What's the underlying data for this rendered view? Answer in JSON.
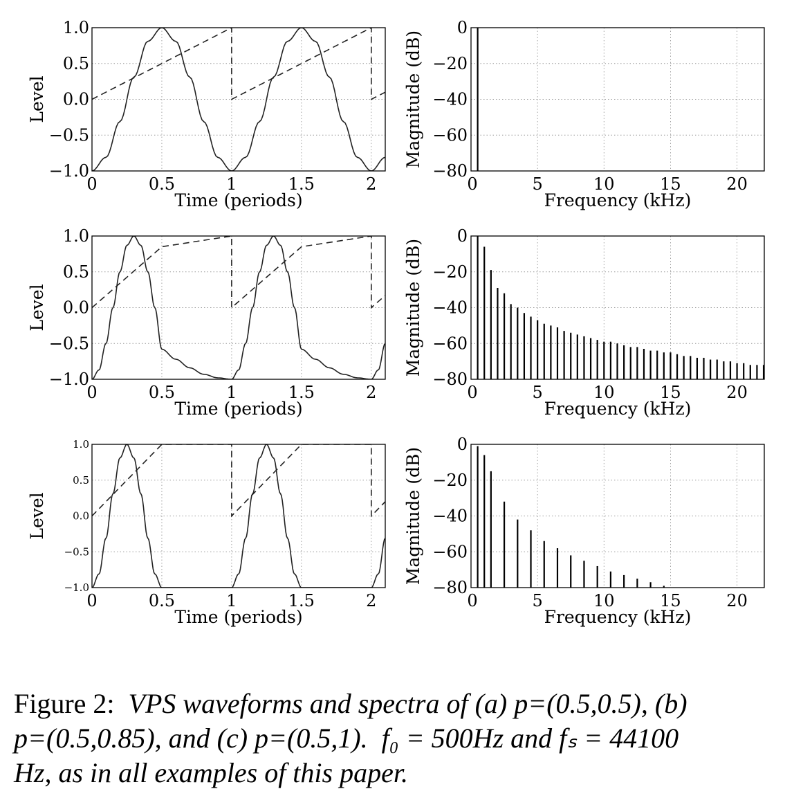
{
  "chart_data": [
    {
      "type": "line",
      "panel": "a-waveform",
      "xlabel": "Time (periods)",
      "ylabel": "Level",
      "xlim": [
        0,
        2.1
      ],
      "ylim": [
        -1,
        1
      ],
      "grid": true,
      "xticks": [
        "0",
        "0.5",
        "1",
        "1.5",
        "2"
      ],
      "yticks": [
        "1.0",
        "0.5",
        "0.0",
        "−0.5",
        "−1.0"
      ],
      "series": [
        {
          "style": "solid",
          "x": [
            0,
            0.1,
            0.2,
            0.3,
            0.4,
            0.5,
            0.6,
            0.7,
            0.8,
            0.9,
            1.0,
            1.1,
            1.2,
            1.3,
            1.4,
            1.5,
            1.6,
            1.7,
            1.8,
            1.9,
            2.0,
            2.1
          ],
          "y": [
            -1.0,
            -0.81,
            -0.31,
            0.31,
            0.81,
            1.0,
            0.81,
            0.31,
            -0.31,
            -0.81,
            -1.0,
            -0.81,
            -0.31,
            0.31,
            0.81,
            1.0,
            0.81,
            0.31,
            -0.31,
            -0.81,
            -1.0,
            -0.81
          ]
        },
        {
          "style": "dashed",
          "x": [
            0,
            0.5,
            1.0,
            1.0,
            1.5,
            2.0,
            2.0,
            2.1
          ],
          "y": [
            0.0,
            0.5,
            1.0,
            0.0,
            0.5,
            1.0,
            0.0,
            0.1
          ]
        }
      ]
    },
    {
      "type": "bar",
      "panel": "a-spectrum",
      "xlabel": "Frequency (kHz)",
      "ylabel": "Magnitude (dB)",
      "xlim": [
        0,
        22.05
      ],
      "ylim": [
        -80,
        0
      ],
      "grid": true,
      "xticks": [
        "0",
        "5",
        "10",
        "15",
        "20"
      ],
      "yticks": [
        "0",
        "−20",
        "−40",
        "−60",
        "−80"
      ],
      "x": [
        0.5
      ],
      "values": [
        0
      ]
    },
    {
      "type": "line",
      "panel": "b-waveform",
      "xlabel": "Time (periods)",
      "ylabel": "Level",
      "xlim": [
        0,
        2.1
      ],
      "ylim": [
        -1,
        1
      ],
      "grid": true,
      "xticks": [
        "0",
        "0.5",
        "1",
        "1.5",
        "2"
      ],
      "yticks": [
        "1.0",
        "0.5",
        "0.0",
        "−0.5",
        "−1.0"
      ],
      "series": [
        {
          "style": "solid",
          "x": [
            0,
            0.05,
            0.1,
            0.15,
            0.2,
            0.25,
            0.3,
            0.35,
            0.4,
            0.45,
            0.5,
            0.6,
            0.7,
            0.8,
            0.9,
            1.0,
            1.05,
            1.1,
            1.15,
            1.2,
            1.25,
            1.3,
            1.35,
            1.4,
            1.45,
            1.5,
            1.6,
            1.7,
            1.8,
            1.9,
            2.0,
            2.05,
            2.1
          ],
          "y": [
            -1.0,
            -0.87,
            -0.5,
            0.0,
            0.5,
            0.87,
            1.0,
            0.87,
            0.5,
            0.0,
            -0.58,
            -0.72,
            -0.84,
            -0.93,
            -0.98,
            -1.0,
            -0.87,
            -0.5,
            0.0,
            0.5,
            0.87,
            1.0,
            0.87,
            0.5,
            0.0,
            -0.58,
            -0.72,
            -0.84,
            -0.93,
            -0.98,
            -1.0,
            -0.87,
            -0.5
          ]
        },
        {
          "style": "dashed",
          "x": [
            0,
            0.5,
            1.0,
            1.0,
            1.5,
            2.0,
            2.0,
            2.1
          ],
          "y": [
            0.0,
            0.85,
            1.0,
            0.0,
            0.85,
            1.0,
            0.0,
            0.17
          ]
        }
      ]
    },
    {
      "type": "bar",
      "panel": "b-spectrum",
      "xlabel": "Frequency (kHz)",
      "ylabel": "Magnitude (dB)",
      "xlim": [
        0,
        22.05
      ],
      "ylim": [
        -80,
        0
      ],
      "grid": true,
      "xticks": [
        "0",
        "5",
        "10",
        "15",
        "20"
      ],
      "yticks": [
        "0",
        "−20",
        "−40",
        "−60",
        "−80"
      ],
      "f0_khz": 0.5,
      "harmonic_levels_db": [
        0,
        -6,
        -19,
        -29,
        -32,
        -38,
        -40,
        -43,
        -45,
        -47,
        -49,
        -50,
        -51,
        -53,
        -54,
        -55,
        -56,
        -57,
        -58,
        -59,
        -59,
        -60,
        -61,
        -62,
        -62,
        -63,
        -64,
        -64,
        -65,
        -65,
        -66,
        -67,
        -67,
        -68,
        -68,
        -69,
        -69,
        -70,
        -70,
        -71,
        -71,
        -72,
        -72,
        -72
      ]
    },
    {
      "type": "line",
      "panel": "c-waveform",
      "xlabel": "Time (periods)",
      "ylabel": "Level",
      "xlim": [
        0,
        2.1
      ],
      "ylim": [
        -1,
        1
      ],
      "grid": true,
      "xticks": [
        "0",
        "0.5",
        "1",
        "1.5",
        "2"
      ],
      "yticks": [
        "1.0",
        "0.5",
        "0.0",
        "−0.5",
        "−1.0"
      ],
      "series": [
        {
          "style": "solid",
          "x": [
            0,
            0.05,
            0.1,
            0.15,
            0.2,
            0.25,
            0.3,
            0.35,
            0.4,
            0.45,
            0.5,
            1.0,
            1.05,
            1.1,
            1.15,
            1.2,
            1.25,
            1.3,
            1.35,
            1.4,
            1.45,
            1.5,
            2.0,
            2.05,
            2.1
          ],
          "y": [
            -1.0,
            -0.81,
            -0.31,
            0.31,
            0.81,
            1.0,
            0.81,
            0.31,
            -0.31,
            -0.81,
            -1.0,
            -1.0,
            -0.81,
            -0.31,
            0.31,
            0.81,
            1.0,
            0.81,
            0.31,
            -0.31,
            -0.81,
            -1.0,
            -1.0,
            -0.81,
            -0.31
          ]
        },
        {
          "style": "dashed",
          "x": [
            0,
            0.5,
            1.0,
            1.0,
            1.5,
            2.0,
            2.0,
            2.1
          ],
          "y": [
            0.0,
            1.0,
            1.0,
            0.0,
            1.0,
            1.0,
            0.0,
            0.2
          ]
        }
      ]
    },
    {
      "type": "bar",
      "panel": "c-spectrum",
      "xlabel": "Frequency (kHz)",
      "ylabel": "Magnitude (dB)",
      "xlim": [
        0,
        22.05
      ],
      "ylim": [
        -80,
        0
      ],
      "grid": true,
      "xticks": [
        "0",
        "5",
        "10",
        "15",
        "20"
      ],
      "yticks": [
        "0",
        "−20",
        "−40",
        "−60",
        "−80"
      ],
      "x": [
        0.5,
        1.0,
        1.5,
        2.5,
        3.5,
        4.5,
        5.5,
        6.5,
        7.5,
        8.5,
        9.5,
        10.5,
        11.5,
        12.5,
        13.5,
        14.5
      ],
      "values": [
        -1,
        -6,
        -15,
        -32,
        -42,
        -48,
        -54,
        -58,
        -62,
        -65,
        -68,
        -71,
        -73,
        -75,
        -77,
        -79
      ]
    }
  ],
  "caption": {
    "prefix": "Figure 2:",
    "line1": "VPS waveforms and spectra of (a) p=(0.5,0.5), (b)",
    "line2a": "p=(0.5,0.85), and (c) p=(0.5,1).",
    "line2b": "f₀ = 500Hz and fₛ = 44100",
    "line3": "Hz, as in all examples of this paper."
  }
}
